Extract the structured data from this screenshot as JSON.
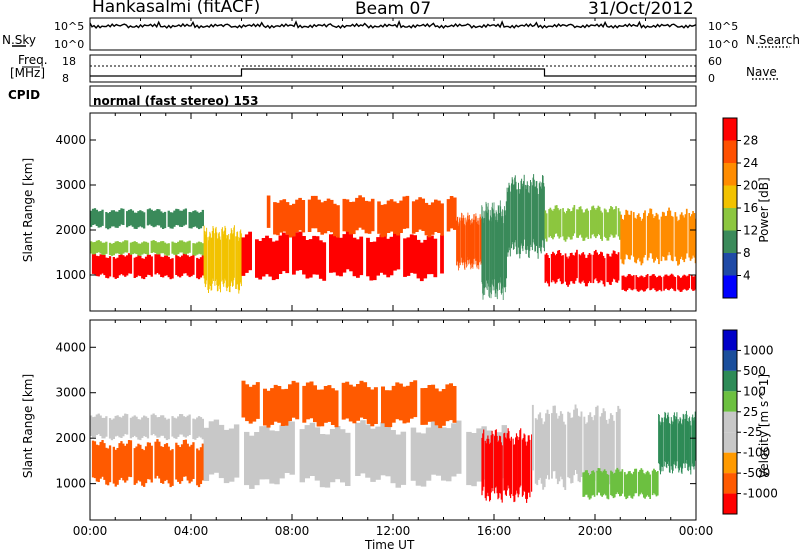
{
  "header": {
    "radar": "Hankasalmi (fitACF)",
    "beam": "Beam 07",
    "date": "31/Oct/2012"
  },
  "noise_panel": {
    "left_label": "N.Sky",
    "right_label": "N.Search",
    "left_ticks": [
      "10^5",
      "10^0"
    ],
    "right_ticks": [
      "10^5",
      "10^0"
    ]
  },
  "freq_panel": {
    "left_label_1": "Freq.",
    "left_label_2": "[MHz]",
    "left_ticks": [
      "18",
      "8"
    ],
    "right_label": "Nave",
    "right_ticks": [
      "60",
      "0"
    ]
  },
  "cpid": {
    "label": "CPID",
    "value": "normal (fast stereo) 153"
  },
  "colors": {
    "power_scale": [
      "#0000ff",
      "#1f4aa6",
      "#3a8a5a",
      "#8cc63f",
      "#f2c200",
      "#ff8c00",
      "#ff5000",
      "#ff0000"
    ],
    "velocity_scale": [
      "#ff0000",
      "#ff5a00",
      "#ff9a00",
      "#c8c8c8",
      "#c8c8c8",
      "#6cc040",
      "#2e8b57",
      "#1b4f9c",
      "#0000c8"
    ],
    "ground_scatter": "#c8c8c8"
  },
  "chart_data": [
    {
      "type": "heatmap",
      "title": "Power",
      "xlabel": "Time UT",
      "ylabel": "Slant Range [km]",
      "x_ticks": [
        "00:00",
        "04:00",
        "08:00",
        "12:00",
        "16:00",
        "20:00",
        "00:00"
      ],
      "xlim_hours": [
        0,
        24
      ],
      "ylim": [
        200,
        4600
      ],
      "y_ticks": [
        1000,
        2000,
        3000,
        4000
      ],
      "colorbar": {
        "label": "Power [dB]",
        "ticks": [
          4,
          8,
          12,
          16,
          20,
          24,
          28
        ],
        "range": [
          0,
          32
        ]
      },
      "echo_bands": [
        {
          "start_h": 0.0,
          "end_h": 4.5,
          "range_lo": 950,
          "range_hi": 1450,
          "level": 28
        },
        {
          "start_h": 0.0,
          "end_h": 4.5,
          "range_lo": 1450,
          "range_hi": 1750,
          "level": 12
        },
        {
          "start_h": 0.0,
          "end_h": 4.5,
          "range_lo": 2050,
          "range_hi": 2450,
          "level": 8
        },
        {
          "start_h": 4.5,
          "end_h": 6.0,
          "range_lo": 700,
          "range_hi": 2000,
          "level": 16
        },
        {
          "start_h": 6.0,
          "end_h": 14.0,
          "range_lo": 950,
          "range_hi": 1900,
          "level": 28
        },
        {
          "start_h": 7.0,
          "end_h": 14.5,
          "range_lo": 1900,
          "range_hi": 2700,
          "level": 24
        },
        {
          "start_h": 14.5,
          "end_h": 15.5,
          "range_lo": 1200,
          "range_hi": 2300,
          "level": 24
        },
        {
          "start_h": 15.5,
          "end_h": 16.5,
          "range_lo": 600,
          "range_hi": 2500,
          "level": 8
        },
        {
          "start_h": 16.5,
          "end_h": 18.0,
          "range_lo": 1500,
          "range_hi": 3100,
          "level": 8
        },
        {
          "start_h": 18.0,
          "end_h": 21.0,
          "range_lo": 800,
          "range_hi": 1500,
          "level": 28
        },
        {
          "start_h": 18.0,
          "end_h": 21.0,
          "range_lo": 1800,
          "range_hi": 2500,
          "level": 12
        },
        {
          "start_h": 21.0,
          "end_h": 24.0,
          "range_lo": 650,
          "range_hi": 1000,
          "level": 28
        },
        {
          "start_h": 21.0,
          "end_h": 24.0,
          "range_lo": 1300,
          "range_hi": 2400,
          "level": 20
        }
      ]
    },
    {
      "type": "heatmap",
      "title": "Velocity",
      "xlabel": "Time UT",
      "ylabel": "Slant Range [km]",
      "x_ticks": [
        "00:00",
        "04:00",
        "08:00",
        "12:00",
        "16:00",
        "20:00",
        "00:00"
      ],
      "xlim_hours": [
        0,
        24
      ],
      "ylim": [
        200,
        4600
      ],
      "y_ticks": [
        1000,
        2000,
        3000,
        4000
      ],
      "colorbar": {
        "label": "Velocity [m s^-1]",
        "ticks": [
          "1000",
          "500",
          "100",
          "25",
          "-25",
          "-100",
          "-500",
          "-1000"
        ]
      },
      "echo_bands": [
        {
          "start_h": 0.0,
          "end_h": 4.5,
          "range_lo": 1000,
          "range_hi": 1900,
          "level": -100
        },
        {
          "start_h": 0.0,
          "end_h": 4.5,
          "range_lo": 2000,
          "range_hi": 2500,
          "level": 0
        },
        {
          "start_h": 4.5,
          "end_h": 16.5,
          "range_lo": 1000,
          "range_hi": 2300,
          "level": 0
        },
        {
          "start_h": 6.0,
          "end_h": 14.5,
          "range_lo": 2300,
          "range_hi": 3200,
          "level": -100
        },
        {
          "start_h": 15.5,
          "end_h": 17.5,
          "range_lo": 700,
          "range_hi": 2100,
          "level": -500
        },
        {
          "start_h": 17.5,
          "end_h": 21.0,
          "range_lo": 1000,
          "range_hi": 2600,
          "level": 0
        },
        {
          "start_h": 19.5,
          "end_h": 22.5,
          "range_lo": 700,
          "range_hi": 1300,
          "level": 100
        },
        {
          "start_h": 22.5,
          "end_h": 24.0,
          "range_lo": 1300,
          "range_hi": 2500,
          "level": 500
        }
      ]
    }
  ],
  "noise_series": {
    "sky_level": 0.75,
    "freq_step_hours": [
      6.0,
      18.0
    ]
  }
}
